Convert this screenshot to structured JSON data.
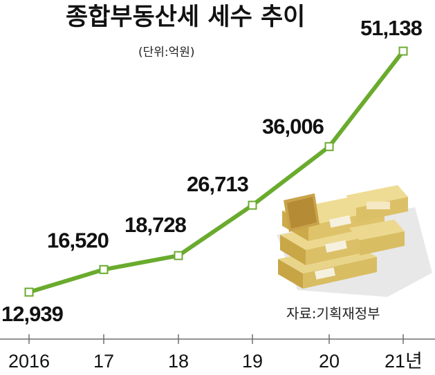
{
  "chart_data": {
    "type": "line",
    "title": "종합부동산세 세수 추이",
    "unit": "(단위:억원)",
    "source": "자료:기획재정부",
    "categories": [
      "2016",
      "17",
      "18",
      "19",
      "20",
      "21년"
    ],
    "values": [
      12939,
      16520,
      18728,
      26713,
      36006,
      51138
    ],
    "value_labels": [
      "12,939",
      "16,520",
      "18,728",
      "26,713",
      "36,006",
      "51,138"
    ],
    "line_color": "#6aab2e",
    "marker_fill": "#ffffff",
    "grid": false,
    "ylim": [
      5000,
      52500
    ]
  },
  "decor": {
    "illustration": "money-stacks-icon"
  }
}
